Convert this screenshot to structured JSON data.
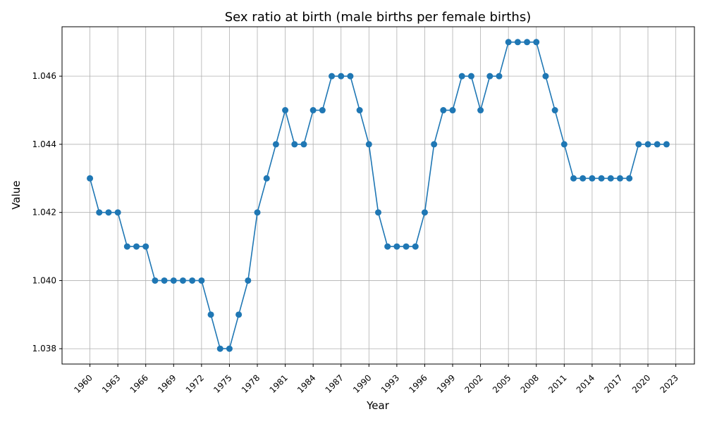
{
  "chart_data": {
    "type": "line",
    "title": "Sex ratio at birth (male births per female births)",
    "xlabel": "Year",
    "ylabel": "Value",
    "xlim": [
      1957,
      2025
    ],
    "ylim": [
      1.03755,
      1.04745
    ],
    "x_ticks": [
      1960,
      1963,
      1966,
      1969,
      1972,
      1975,
      1978,
      1981,
      1984,
      1987,
      1990,
      1993,
      1996,
      1999,
      2002,
      2005,
      2008,
      2011,
      2014,
      2017,
      2020,
      2023
    ],
    "y_ticks": [
      "1.038",
      "1.040",
      "1.042",
      "1.044",
      "1.046"
    ],
    "grid": true,
    "legend": "none",
    "colors": {
      "line": "#1f77b4",
      "grid": "#b0b0b0",
      "axes": "#000000"
    },
    "series": [
      {
        "marker": "circle",
        "x": [
          1960,
          1961,
          1962,
          1963,
          1964,
          1965,
          1966,
          1967,
          1968,
          1969,
          1970,
          1971,
          1972,
          1973,
          1974,
          1975,
          1976,
          1977,
          1978,
          1979,
          1980,
          1981,
          1982,
          1983,
          1984,
          1985,
          1986,
          1987,
          1988,
          1989,
          1990,
          1991,
          1992,
          1993,
          1994,
          1995,
          1996,
          1997,
          1998,
          1999,
          2000,
          2001,
          2002,
          2003,
          2004,
          2005,
          2006,
          2007,
          2008,
          2009,
          2010,
          2011,
          2012,
          2013,
          2014,
          2015,
          2016,
          2017,
          2018,
          2019,
          2020,
          2021,
          2022
        ],
        "y": [
          1.043,
          1.042,
          1.042,
          1.042,
          1.041,
          1.041,
          1.041,
          1.04,
          1.04,
          1.04,
          1.04,
          1.04,
          1.04,
          1.039,
          1.038,
          1.038,
          1.039,
          1.04,
          1.042,
          1.043,
          1.044,
          1.045,
          1.044,
          1.044,
          1.045,
          1.045,
          1.046,
          1.046,
          1.046,
          1.045,
          1.044,
          1.042,
          1.041,
          1.041,
          1.041,
          1.041,
          1.042,
          1.044,
          1.045,
          1.045,
          1.046,
          1.046,
          1.045,
          1.046,
          1.046,
          1.047,
          1.047,
          1.047,
          1.047,
          1.046,
          1.045,
          1.044,
          1.043,
          1.043,
          1.043,
          1.043,
          1.043,
          1.043,
          1.043,
          1.044,
          1.044,
          1.044,
          1.044
        ]
      }
    ]
  }
}
